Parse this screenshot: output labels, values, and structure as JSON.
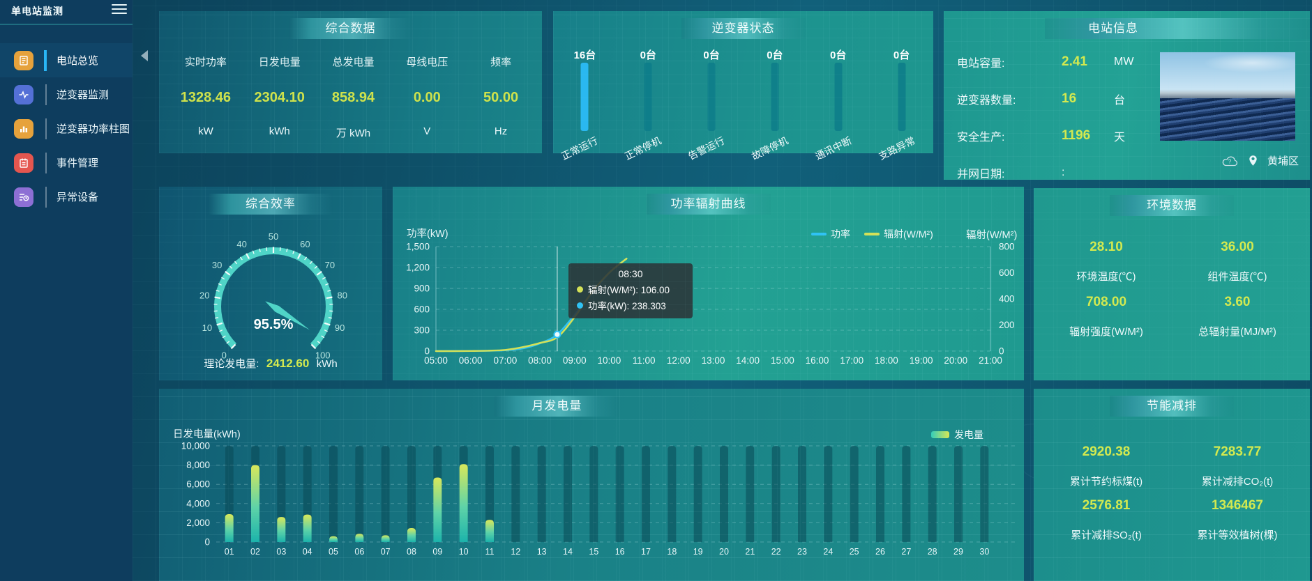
{
  "app": {
    "title": "单电站监测"
  },
  "sidebar": {
    "items": [
      {
        "label": "电站总览",
        "active": true,
        "color": "#e6a23c",
        "icon": "document-icon"
      },
      {
        "label": "逆变器监测",
        "active": false,
        "color": "#5470d6",
        "icon": "waveform-icon"
      },
      {
        "label": "逆变器功率柱图",
        "active": false,
        "color": "#e6a23c",
        "icon": "bar-chart-icon"
      },
      {
        "label": "事件管理",
        "active": false,
        "color": "#e4564f",
        "icon": "notebook-icon"
      },
      {
        "label": "异常设备",
        "active": false,
        "color": "#8d6fd4",
        "icon": "device-list-icon"
      }
    ]
  },
  "summary": {
    "title": "综合数据",
    "metrics": [
      {
        "label": "实时功率",
        "value": "1328.46",
        "unit": "kW"
      },
      {
        "label": "日发电量",
        "value": "2304.10",
        "unit": "kWh"
      },
      {
        "label": "总发电量",
        "value": "858.94",
        "unit": "万 kWh"
      },
      {
        "label": "母线电压",
        "value": "0.00",
        "unit": "V"
      },
      {
        "label": "频率",
        "value": "50.00",
        "unit": "Hz"
      }
    ]
  },
  "inverter_status": {
    "title": "逆变器状态"
  },
  "station_info": {
    "title": "电站信息",
    "rows": [
      {
        "label": "电站容量:",
        "value": "2.41",
        "unit": "MW"
      },
      {
        "label": "逆变器数量:",
        "value": "16",
        "unit": "台"
      },
      {
        "label": "安全生产:",
        "value": "1196",
        "unit": "天"
      },
      {
        "label": "并网日期:",
        "value": ":",
        "unit": ""
      }
    ],
    "location": "黄埔区"
  },
  "efficiency": {
    "title": "综合效率",
    "value": "95.5%",
    "footer_label": "理论发电量:",
    "footer_value": "2412.60",
    "footer_unit": "kWh"
  },
  "power_curve": {
    "title": "功率辐射曲线",
    "left_axis_name": "功率(kW)",
    "right_axis_name": "辐射(W/M²)"
  },
  "environment": {
    "title": "环境数据",
    "cells": [
      {
        "value": "28.10",
        "label": "环境温度(℃)"
      },
      {
        "value": "36.00",
        "label": "组件温度(℃)"
      },
      {
        "value": "708.00",
        "label": "辐射强度(W/M²)"
      },
      {
        "value": "3.60",
        "label": "总辐射量(MJ/M²)"
      }
    ]
  },
  "monthly": {
    "title": "月发电量",
    "axis_name": "日发电量(kWh)",
    "legend": "发电量"
  },
  "savings": {
    "title": "节能减排",
    "cells": [
      {
        "value": "2920.38",
        "label": "累计节约标煤(t)"
      },
      {
        "value": "7283.77",
        "label": "累计减排CO₂(t)"
      },
      {
        "value": "2576.81",
        "label": "累计减排SO₂(t)"
      },
      {
        "value": "1346467",
        "label": "累计等效植树(棵)"
      }
    ]
  },
  "chart_data": [
    {
      "id": "power_curve",
      "type": "line",
      "title": "功率辐射曲线",
      "x_axis_labels": [
        "05:00",
        "06:00",
        "07:00",
        "08:00",
        "09:00",
        "10:00",
        "11:00",
        "12:00",
        "13:00",
        "14:00",
        "15:00",
        "16:00",
        "17:00",
        "18:00",
        "19:00",
        "20:00",
        "21:00"
      ],
      "x_hour_range": [
        5,
        21
      ],
      "sample_hours": [
        5,
        5.5,
        6,
        6.5,
        7,
        7.5,
        8,
        8.5,
        9,
        9.5,
        10,
        10.5
      ],
      "series": [
        {
          "name": "功率",
          "axis": "left",
          "color": "#2fc2f4",
          "values": [
            0,
            1,
            2,
            5,
            12,
            38,
            110,
            238.3,
            520,
            830,
            1120,
            1328
          ]
        },
        {
          "name": "辐射(W/M²)",
          "axis": "right",
          "color": "#d4e157",
          "values": [
            0,
            0,
            1,
            3,
            9,
            30,
            62,
            106,
            260,
            450,
            600,
            708
          ]
        }
      ],
      "left_axis": {
        "name": "功率(kW)",
        "min": 0,
        "max": 1500,
        "ticks": [
          "1,500",
          "1,200",
          "900",
          "600",
          "300",
          "0"
        ]
      },
      "right_axis": {
        "name": "辐射(W/M²)",
        "min": 0,
        "max": 800,
        "ticks": [
          "800",
          "600",
          "400",
          "200",
          "0"
        ]
      },
      "legend_position": "top-right",
      "grid": true,
      "tooltip": {
        "time": "08:30",
        "x_hour": 8.5,
        "items": [
          {
            "name": "辐射(W/M²)",
            "value": "106.00",
            "color": "#d4e157",
            "text": "辐射(W/M²): 106.00"
          },
          {
            "name": "功率(kW)",
            "value": "238.303",
            "color": "#2fc2f4",
            "text": "功率(kW): 238.303"
          }
        ]
      }
    },
    {
      "id": "monthly_generation",
      "type": "bar",
      "title": "月发电量",
      "xlabel": "",
      "ylabel": "日发电量(kWh)",
      "ylim": [
        0,
        10000
      ],
      "yticks": [
        "10,000",
        "8,000",
        "6,000",
        "4,000",
        "2,000",
        "0"
      ],
      "legend": "发电量",
      "categories": [
        "01",
        "02",
        "03",
        "04",
        "05",
        "06",
        "07",
        "08",
        "09",
        "10",
        "11",
        "12",
        "13",
        "14",
        "15",
        "16",
        "17",
        "18",
        "19",
        "20",
        "21",
        "22",
        "23",
        "24",
        "25",
        "26",
        "27",
        "28",
        "29",
        "30"
      ],
      "values": [
        2900,
        8000,
        2600,
        2850,
        600,
        850,
        700,
        1450,
        6700,
        8100,
        2300,
        0,
        0,
        0,
        0,
        0,
        0,
        0,
        0,
        0,
        0,
        0,
        0,
        0,
        0,
        0,
        0,
        0,
        0,
        0
      ],
      "bar_gradient": [
        "#1cb3ab",
        "#5ed3a8",
        "#d9e85a"
      ]
    },
    {
      "id": "inverter_status",
      "type": "bar",
      "title": "逆变器状态",
      "categories": [
        "正常运行",
        "正常停机",
        "告警运行",
        "故障停机",
        "通讯中断",
        "支路异常"
      ],
      "values": [
        16,
        0,
        0,
        0,
        0,
        0
      ],
      "unit": "台",
      "max": 16,
      "active_color": "#2ab8f0",
      "bar_bg_color": "#0d7d8a"
    },
    {
      "id": "efficiency_gauge",
      "type": "gauge",
      "title": "综合效率",
      "value": 95.5,
      "min": 0,
      "max": 100,
      "tick_labels": [
        "0",
        "10",
        "20",
        "30",
        "40",
        "50",
        "60",
        "70",
        "80",
        "90",
        "100"
      ],
      "color": "#4fd4c7",
      "display": "95.5%"
    }
  ]
}
